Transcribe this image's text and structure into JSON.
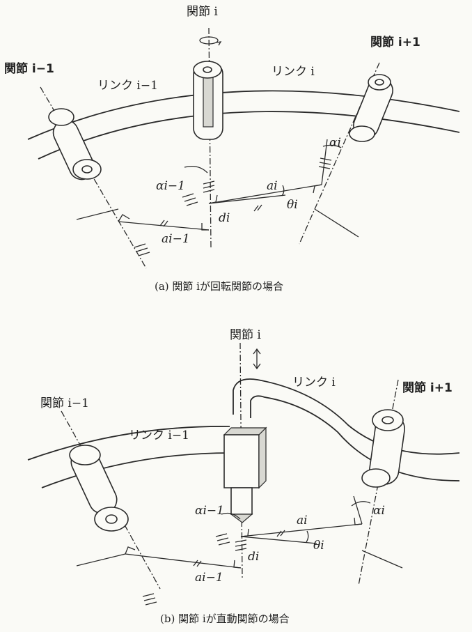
{
  "labels": {
    "joint_i": "関節 i",
    "joint_i_minus_1": "関節 i−1",
    "joint_i_plus_1": "関節 i+1",
    "link_i_minus_1": "リンク i−1",
    "link_i": "リンク i",
    "alpha_i": "αi",
    "alpha_i_minus_1": "αi−1",
    "a_i": "ai",
    "a_i_minus_1": "ai−1",
    "d_i": "di",
    "theta_i": "θi"
  },
  "captions": {
    "a": "(a) 関節 iが回転関節の場合",
    "b": "(b) 関節 iが直動関節の場合"
  }
}
